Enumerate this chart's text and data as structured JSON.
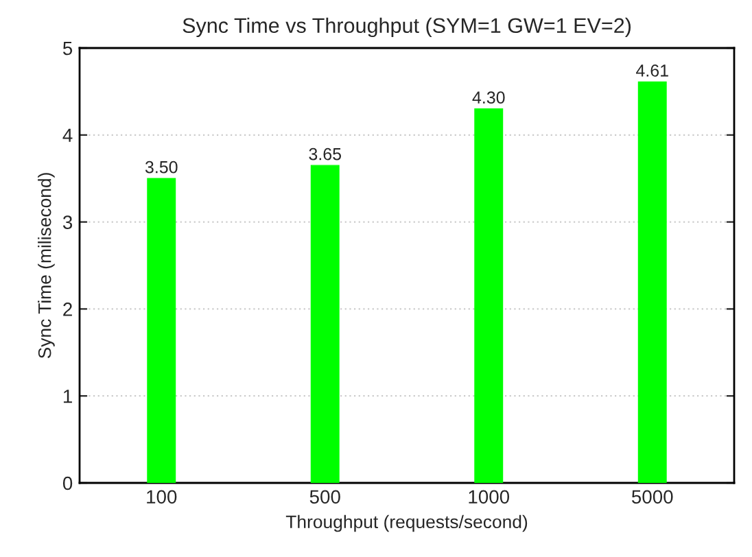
{
  "chart_data": {
    "type": "bar",
    "title": "Sync Time vs Throughput (SYM=1 GW=1 EV=2)",
    "xlabel": "Throughput (requests/second)",
    "ylabel": "Sync Time (milisecond)",
    "categories": [
      "100",
      "500",
      "1000",
      "5000"
    ],
    "values": [
      3.5,
      3.65,
      4.3,
      4.61
    ],
    "value_labels": [
      "3.50",
      "3.65",
      "4.30",
      "4.61"
    ],
    "color": "#00ff00",
    "ylim": [
      0,
      5
    ],
    "yticks": [
      0,
      1,
      2,
      3,
      4,
      5
    ],
    "grid": "y"
  }
}
